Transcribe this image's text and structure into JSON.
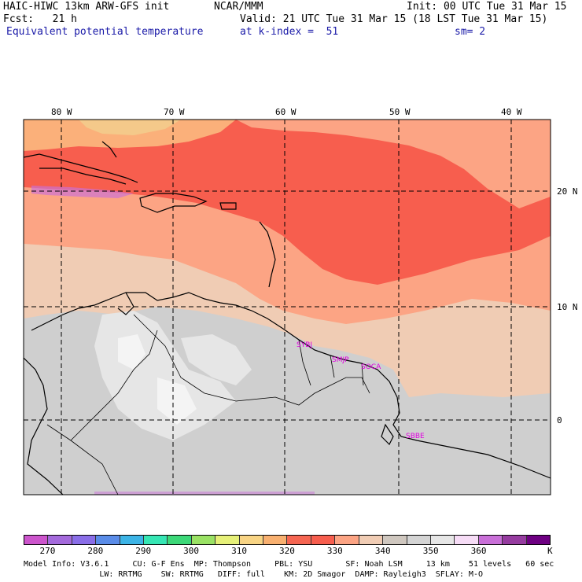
{
  "header": {
    "model": "HAIC-HIWC 13km ARW-GFS init",
    "org": "NCAR/MMM",
    "init": "Init: 00 UTC Tue 31 Mar 15",
    "fcst": "Fcst:   21 h",
    "valid": "Valid: 21 UTC Tue 31 Mar 15 (18 LST Tue 31 Mar 15)",
    "field": "Equivalent potential temperature",
    "level": "at k-index =  51",
    "smooth": "sm= 2"
  },
  "map": {
    "lon_labels": [
      "80 W",
      "70 W",
      "60 W",
      "50 W",
      "40 W"
    ],
    "lat_labels": [
      "20 N",
      "10 N",
      "0"
    ],
    "stations": [
      "SYBJ",
      "SMJP",
      "SOCA",
      "SBBE"
    ],
    "colors": {
      "c320": "#f4c98a",
      "c325": "#fbb07a",
      "c330": "#f75e4e",
      "c335": "#f0553f",
      "c340": "#fca484",
      "c345": "#f0ccb4",
      "c350": "#cfcfcf",
      "c355": "#e6e6e6",
      "c360": "#f4f4f4",
      "lowlevel": "#c96fd8"
    }
  },
  "colorbar": {
    "colors": [
      "#cc55cc",
      "#a46adc",
      "#8a6ee8",
      "#5a8ce8",
      "#3cb4e6",
      "#36e6b4",
      "#3cd878",
      "#9ae264",
      "#e6f078",
      "#f8d484",
      "#f8b070",
      "#f66652",
      "#f75e4e",
      "#fca484",
      "#f0ccb4",
      "#cfc7bf",
      "#d4d4d4",
      "#e6e6e6",
      "#f6dcf6",
      "#c96fd8",
      "#963ca0",
      "#6e0082"
    ],
    "ticks": [
      "270",
      "280",
      "290",
      "300",
      "310",
      "320",
      "330",
      "340",
      "350",
      "360",
      "K"
    ]
  },
  "footer": {
    "line1": "Model Info: V3.6.1     CU: G-F Ens  MP: Thompson     PBL: YSU       SF: Noah LSM     13 km    51 levels   60 sec",
    "line2": "                LW: RRTMG    SW: RRTMG   DIFF: full    KM: 2D Smagor  DAMP: Rayleigh3  SFLAY: M-O"
  }
}
